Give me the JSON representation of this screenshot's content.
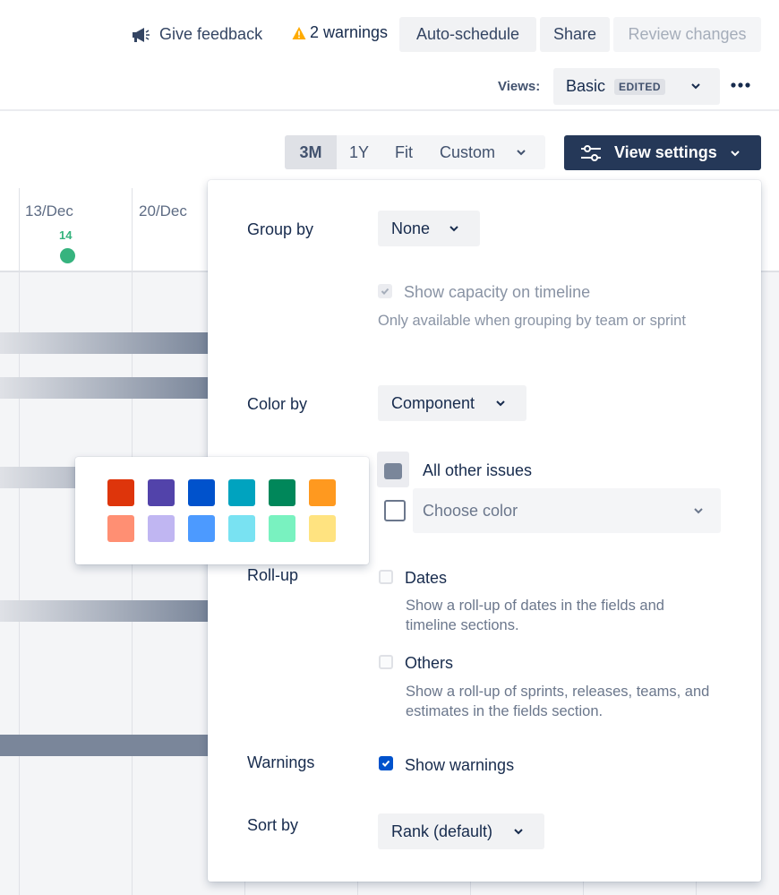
{
  "header": {
    "give_feedback": "Give feedback",
    "warnings": "2 warnings",
    "auto_schedule": "Auto-schedule",
    "share": "Share",
    "review_changes": "Review changes",
    "views_label": "Views:",
    "views_value": "Basic",
    "edited_badge": "EDITED"
  },
  "toolbar": {
    "zoom": [
      "3M",
      "1Y",
      "Fit"
    ],
    "custom": "Custom",
    "view_settings": "View settings"
  },
  "timeline": {
    "dates": [
      "13/Dec",
      "20/Dec"
    ],
    "today_number": "14",
    "today_color": "#36b37e",
    "bar_color": "#7a869a"
  },
  "settings": {
    "group_by_label": "Group by",
    "group_by_value": "None",
    "capacity_label": "Show capacity on timeline",
    "capacity_help": "Only available when grouping by team or sprint",
    "color_by_label": "Color by",
    "color_by_value": "Component",
    "all_other_issues": "All other issues",
    "choose_color": "Choose color",
    "rollup_label": "Roll-up",
    "rollup_dates": "Dates",
    "rollup_dates_help": "Show a roll-up of dates in the fields and timeline sections.",
    "rollup_others": "Others",
    "rollup_others_help": "Show a roll-up of sprints, releases, teams, and estimates in the fields section.",
    "warnings_label": "Warnings",
    "show_warnings": "Show warnings",
    "show_warnings_checked": true,
    "sort_by_label": "Sort by",
    "sort_by_value": "Rank (default)"
  },
  "palette": {
    "row1": [
      "#de350b",
      "#5243aa",
      "#0052cc",
      "#00a3bf",
      "#00875a",
      "#ff991f"
    ],
    "row2": [
      "#ff8f73",
      "#c0b6f2",
      "#4c9aff",
      "#79e2f2",
      "#79f2c0",
      "#ffe380"
    ]
  },
  "colors": {
    "primary_button": "#253858",
    "checkbox_checked": "#0052cc",
    "warning_icon": "#ffab00"
  }
}
